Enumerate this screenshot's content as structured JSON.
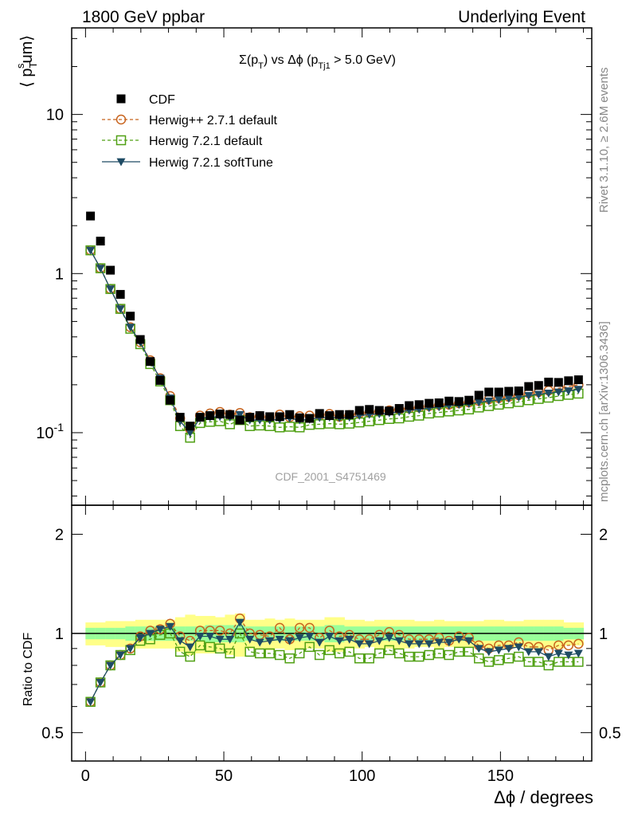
{
  "header": {
    "left": "1800 GeV ppbar",
    "right": "Underlying Event"
  },
  "side_labels": {
    "rivet": "Rivet 3.1.10, ≥ 2.6M events",
    "mcplots": "mcplots.cern.ch [arXiv:1306.3436]"
  },
  "watermark": "CDF_2001_S4751469",
  "chart_data": [
    {
      "type": "scatter",
      "title": "Σ(p_T) vs Δϕ (p_Tj1 > 5.0 GeV)",
      "ylabel": "⟨ p_T^sum ⟩",
      "xlabel": "",
      "log_y": true,
      "xlim": [
        -5,
        183
      ],
      "ylim": [
        0.035,
        35
      ],
      "y_ticks": [
        0.1,
        1,
        10
      ],
      "y_tick_labels": [
        "10^-1",
        "1",
        "10"
      ],
      "legend_position": "top-left",
      "x": [
        1.8,
        5.4,
        9.0,
        12.6,
        16.2,
        19.8,
        23.4,
        27.0,
        30.6,
        34.2,
        37.8,
        41.4,
        45.0,
        48.6,
        52.2,
        55.8,
        59.4,
        63.0,
        66.6,
        70.2,
        73.8,
        77.4,
        81.0,
        84.6,
        88.2,
        91.8,
        95.4,
        99.0,
        102.6,
        106.2,
        109.8,
        113.4,
        117.0,
        120.6,
        124.2,
        127.8,
        131.4,
        135.0,
        138.6,
        142.2,
        145.8,
        149.4,
        153.0,
        156.6,
        160.2,
        163.8,
        167.4,
        171.0,
        174.6,
        178.2
      ],
      "series": [
        {
          "name": "CDF",
          "color": "#000000",
          "marker": "square-filled",
          "values": [
            2.3,
            1.6,
            1.05,
            0.74,
            0.54,
            0.385,
            0.28,
            0.213,
            0.16,
            0.125,
            0.11,
            0.125,
            0.128,
            0.131,
            0.13,
            0.12,
            0.125,
            0.128,
            0.126,
            0.126,
            0.13,
            0.124,
            0.123,
            0.132,
            0.128,
            0.13,
            0.13,
            0.138,
            0.14,
            0.138,
            0.137,
            0.142,
            0.148,
            0.15,
            0.153,
            0.154,
            0.158,
            0.157,
            0.16,
            0.172,
            0.18,
            0.18,
            0.182,
            0.183,
            0.195,
            0.198,
            0.208,
            0.207,
            0.212,
            0.215
          ]
        },
        {
          "name": "Herwig++ 2.7.1 default",
          "color": "#c8641e",
          "marker": "circle-open",
          "line": "dashed",
          "values": [
            1.4,
            1.08,
            0.8,
            0.6,
            0.46,
            0.37,
            0.285,
            0.22,
            0.17,
            0.123,
            0.105,
            0.128,
            0.132,
            0.135,
            0.13,
            0.133,
            0.125,
            0.127,
            0.124,
            0.13,
            0.125,
            0.127,
            0.128,
            0.128,
            0.131,
            0.126,
            0.129,
            0.132,
            0.134,
            0.136,
            0.138,
            0.14,
            0.142,
            0.144,
            0.147,
            0.149,
            0.15,
            0.153,
            0.155,
            0.158,
            0.162,
            0.165,
            0.168,
            0.172,
            0.177,
            0.18,
            0.184,
            0.19,
            0.195,
            0.2
          ]
        },
        {
          "name": "Herwig 7.2.1 default",
          "color": "#50a014",
          "marker": "square-open",
          "line": "dashed",
          "values": [
            1.4,
            1.08,
            0.8,
            0.6,
            0.45,
            0.36,
            0.27,
            0.21,
            0.16,
            0.11,
            0.093,
            0.115,
            0.117,
            0.118,
            0.113,
            0.12,
            0.11,
            0.111,
            0.11,
            0.108,
            0.109,
            0.108,
            0.112,
            0.113,
            0.114,
            0.113,
            0.114,
            0.116,
            0.118,
            0.12,
            0.122,
            0.123,
            0.126,
            0.128,
            0.132,
            0.134,
            0.136,
            0.138,
            0.14,
            0.144,
            0.147,
            0.15,
            0.153,
            0.156,
            0.16,
            0.163,
            0.166,
            0.17,
            0.173,
            0.176
          ]
        },
        {
          "name": "Herwig 7.2.1 softTune",
          "color": "#1e4b64",
          "marker": "triangle-down-filled",
          "line": "solid",
          "values": [
            1.4,
            1.08,
            0.8,
            0.6,
            0.46,
            0.37,
            0.28,
            0.22,
            0.165,
            0.118,
            0.1,
            0.123,
            0.125,
            0.126,
            0.125,
            0.13,
            0.12,
            0.12,
            0.12,
            0.121,
            0.123,
            0.12,
            0.121,
            0.124,
            0.125,
            0.124,
            0.125,
            0.128,
            0.13,
            0.131,
            0.133,
            0.135,
            0.138,
            0.14,
            0.143,
            0.145,
            0.148,
            0.15,
            0.152,
            0.155,
            0.158,
            0.161,
            0.164,
            0.167,
            0.171,
            0.174,
            0.177,
            0.18,
            0.183,
            0.187
          ]
        }
      ]
    },
    {
      "type": "scatter",
      "title": "",
      "ylabel": "Ratio to CDF",
      "xlabel": "Δϕ / degrees",
      "log_y": true,
      "xlim": [
        -5,
        183
      ],
      "ylim": [
        0.41,
        2.45
      ],
      "x_ticks": [
        0,
        50,
        100,
        150
      ],
      "x_tick_labels": [
        "0",
        "50",
        "100",
        "150"
      ],
      "y_ticks": [
        0.5,
        1,
        2
      ],
      "y_tick_labels": [
        "0.5",
        "1",
        "2"
      ],
      "reference_line": 1,
      "band_inner_halfwidth": [
        0.04,
        0.04,
        0.04,
        0.04,
        0.05,
        0.05,
        0.05,
        0.05,
        0.05,
        0.05,
        0.05,
        0.05,
        0.06,
        0.06,
        0.06,
        0.06,
        0.05,
        0.05,
        0.05,
        0.05,
        0.05,
        0.05,
        0.05,
        0.05,
        0.06,
        0.06,
        0.05,
        0.05,
        0.05,
        0.05,
        0.05,
        0.05,
        0.05,
        0.05,
        0.05,
        0.05,
        0.05,
        0.05,
        0.05,
        0.05,
        0.05,
        0.05,
        0.05,
        0.05,
        0.05,
        0.05,
        0.05,
        0.05,
        0.04,
        0.04
      ],
      "band_outer_halfwidth": [
        0.08,
        0.08,
        0.09,
        0.09,
        0.09,
        0.1,
        0.1,
        0.1,
        0.1,
        0.12,
        0.14,
        0.13,
        0.13,
        0.12,
        0.14,
        0.15,
        0.1,
        0.1,
        0.11,
        0.1,
        0.11,
        0.1,
        0.1,
        0.1,
        0.12,
        0.12,
        0.1,
        0.1,
        0.09,
        0.1,
        0.1,
        0.1,
        0.1,
        0.09,
        0.09,
        0.1,
        0.09,
        0.09,
        0.09,
        0.09,
        0.1,
        0.1,
        0.09,
        0.09,
        0.1,
        0.1,
        0.1,
        0.1,
        0.08,
        0.08
      ],
      "series": [
        {
          "name": "Herwig++ 2.7.1 default",
          "color": "#c8641e",
          "marker": "circle-open",
          "line": "dashed",
          "values": [
            0.62,
            0.71,
            0.8,
            0.86,
            0.9,
            0.98,
            1.02,
            1.03,
            1.07,
            0.98,
            0.95,
            1.02,
            1.02,
            1.02,
            1.0,
            1.11,
            1.0,
            0.99,
            0.98,
            1.04,
            0.96,
            1.04,
            1.04,
            0.97,
            1.02,
            0.98,
            0.99,
            0.96,
            0.96,
            0.99,
            1.01,
            0.99,
            0.96,
            0.96,
            0.96,
            0.97,
            0.95,
            0.98,
            0.97,
            0.92,
            0.9,
            0.92,
            0.92,
            0.94,
            0.91,
            0.91,
            0.89,
            0.92,
            0.92,
            0.93
          ]
        },
        {
          "name": "Herwig 7.2.1 default",
          "color": "#50a014",
          "marker": "square-open",
          "line": "dashed",
          "values": [
            0.62,
            0.71,
            0.8,
            0.86,
            0.89,
            0.95,
            0.96,
            0.99,
            1.0,
            0.88,
            0.85,
            0.92,
            0.91,
            0.9,
            0.87,
            1.0,
            0.88,
            0.87,
            0.87,
            0.86,
            0.84,
            0.87,
            0.91,
            0.86,
            0.89,
            0.87,
            0.88,
            0.84,
            0.84,
            0.87,
            0.89,
            0.87,
            0.85,
            0.85,
            0.86,
            0.87,
            0.86,
            0.88,
            0.88,
            0.84,
            0.82,
            0.83,
            0.84,
            0.85,
            0.82,
            0.82,
            0.8,
            0.82,
            0.82,
            0.82
          ]
        },
        {
          "name": "Herwig 7.2.1 softTune",
          "color": "#1e4b64",
          "marker": "triangle-down-filled",
          "line": "solid",
          "values": [
            0.62,
            0.71,
            0.8,
            0.86,
            0.9,
            0.97,
            1.0,
            1.03,
            1.05,
            0.95,
            0.91,
            0.98,
            0.98,
            0.96,
            0.96,
            1.08,
            0.96,
            0.94,
            0.95,
            0.96,
            0.95,
            0.97,
            0.98,
            0.94,
            0.98,
            0.95,
            0.96,
            0.93,
            0.93,
            0.95,
            0.97,
            0.95,
            0.93,
            0.93,
            0.93,
            0.94,
            0.94,
            0.96,
            0.95,
            0.9,
            0.88,
            0.89,
            0.9,
            0.91,
            0.88,
            0.88,
            0.85,
            0.87,
            0.86,
            0.87
          ]
        }
      ]
    }
  ]
}
